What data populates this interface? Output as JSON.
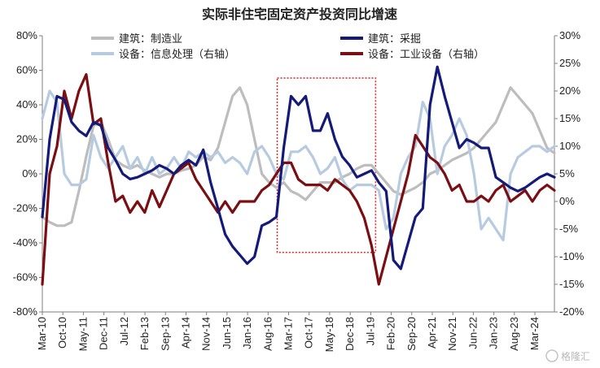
{
  "chart_data": {
    "type": "line",
    "title": "实际非住宅固定资产投资同比增速",
    "x_ticks": [
      "Mar-10",
      "Oct-10",
      "May-11",
      "Dec-11",
      "Jul-12",
      "Feb-13",
      "Sep-13",
      "Apr-14",
      "Nov-14",
      "Jun-15",
      "Jan-16",
      "Aug-16",
      "Mar-17",
      "Oct-17",
      "May-18",
      "Dec-18",
      "Jul-19",
      "Feb-20",
      "Sep-20",
      "Apr-21",
      "Nov-21",
      "Jun-22",
      "Jan-23",
      "Aug-23",
      "Mar-24"
    ],
    "y_left": {
      "ticks": [
        "80%",
        "60%",
        "40%",
        "20%",
        "0%",
        "-20%",
        "-40%",
        "-60%",
        "-80%"
      ],
      "range": [
        -80,
        80
      ]
    },
    "y_right": {
      "ticks": [
        "30%",
        "25%",
        "20%",
        "15%",
        "10%",
        "5%",
        "0%",
        "-5%",
        "-10%",
        "-15%",
        "-20%"
      ],
      "range": [
        -20,
        30
      ]
    },
    "legend": [
      {
        "label": "建筑：制造业",
        "color": "#bdbdbd"
      },
      {
        "label": "建筑：采掘",
        "color": "#141a7a"
      },
      {
        "label": "设备：信息处理（右轴）",
        "color": "#b7cbe0"
      },
      {
        "label": "设备：工业设备（右轴）",
        "color": "#7a0e12"
      }
    ],
    "highlight": {
      "from": "Mar-17",
      "to": "Jul-19",
      "color": "#e03030"
    },
    "series": [
      {
        "name": "建筑：制造业",
        "axis": "left",
        "color": "#bdbdbd",
        "values": [
          -25,
          -28,
          -30,
          -30,
          -28,
          -10,
          10,
          28,
          30,
          20,
          8,
          5,
          3,
          5,
          2,
          0,
          -2,
          0,
          0,
          2,
          3,
          5,
          10,
          8,
          15,
          30,
          45,
          50,
          40,
          20,
          0,
          -5,
          -8,
          -5,
          -10,
          -12,
          -15,
          -10,
          -5,
          -5,
          -5,
          -2,
          0,
          3,
          5,
          5,
          0,
          -5,
          -10,
          -12,
          -10,
          -8,
          -5,
          0,
          2,
          5,
          8,
          10,
          12,
          15,
          20,
          25,
          30,
          40,
          50,
          45,
          40,
          35,
          25,
          15,
          12
        ]
      },
      {
        "name": "建筑：采掘",
        "axis": "left",
        "color": "#141a7a",
        "values": [
          -25,
          20,
          45,
          43,
          30,
          25,
          22,
          30,
          28,
          15,
          8,
          0,
          -3,
          -2,
          0,
          2,
          5,
          3,
          0,
          5,
          8,
          5,
          14,
          -5,
          -20,
          -35,
          -42,
          -47,
          -52,
          -48,
          -30,
          -28,
          -25,
          15,
          45,
          40,
          45,
          25,
          25,
          35,
          20,
          10,
          5,
          -2,
          0,
          2,
          -5,
          -10,
          -50,
          -55,
          -40,
          -25,
          -20,
          40,
          62,
          45,
          30,
          15,
          20,
          18,
          15,
          15,
          -2,
          -5,
          -8,
          -10,
          -8,
          -5,
          -2,
          0,
          -2
        ]
      },
      {
        "name": "设备：信息处理（右轴）",
        "axis": "right",
        "color": "#b7cbe0",
        "values": [
          15,
          20,
          18,
          5,
          3,
          3,
          4,
          12,
          8,
          6,
          8,
          10,
          6,
          8,
          5,
          8,
          5,
          6,
          8,
          6,
          9,
          8,
          9,
          8,
          9,
          7,
          8,
          7,
          5,
          9,
          10,
          8,
          5,
          4,
          9,
          9,
          10,
          8,
          5,
          6,
          8,
          4,
          2,
          3,
          3,
          3,
          2,
          -5,
          -3,
          5,
          8,
          10,
          18,
          15,
          5,
          10,
          12,
          15,
          12,
          5,
          -5,
          -3,
          -5,
          -7,
          5,
          8,
          9,
          10,
          10,
          9,
          10
        ]
      },
      {
        "name": "设备：工业设备（右轴）",
        "axis": "right",
        "color": "#7a0e12",
        "values": [
          -15,
          5,
          10,
          20,
          15,
          20,
          23,
          14,
          15,
          7,
          0,
          1,
          -2,
          0,
          -2,
          2,
          -1,
          2,
          5,
          6,
          7,
          4,
          2,
          0,
          -2,
          0,
          -2,
          0,
          0,
          0,
          2,
          3,
          5,
          7,
          7,
          4,
          3,
          3,
          3,
          2,
          4,
          3,
          2,
          0,
          -3,
          -8,
          -15,
          -10,
          -5,
          0,
          5,
          12,
          10,
          8,
          7,
          5,
          2,
          3,
          0,
          0,
          1,
          0,
          2,
          3,
          0,
          1,
          2,
          0,
          2,
          3,
          2
        ]
      }
    ]
  },
  "watermark": "格隆汇"
}
